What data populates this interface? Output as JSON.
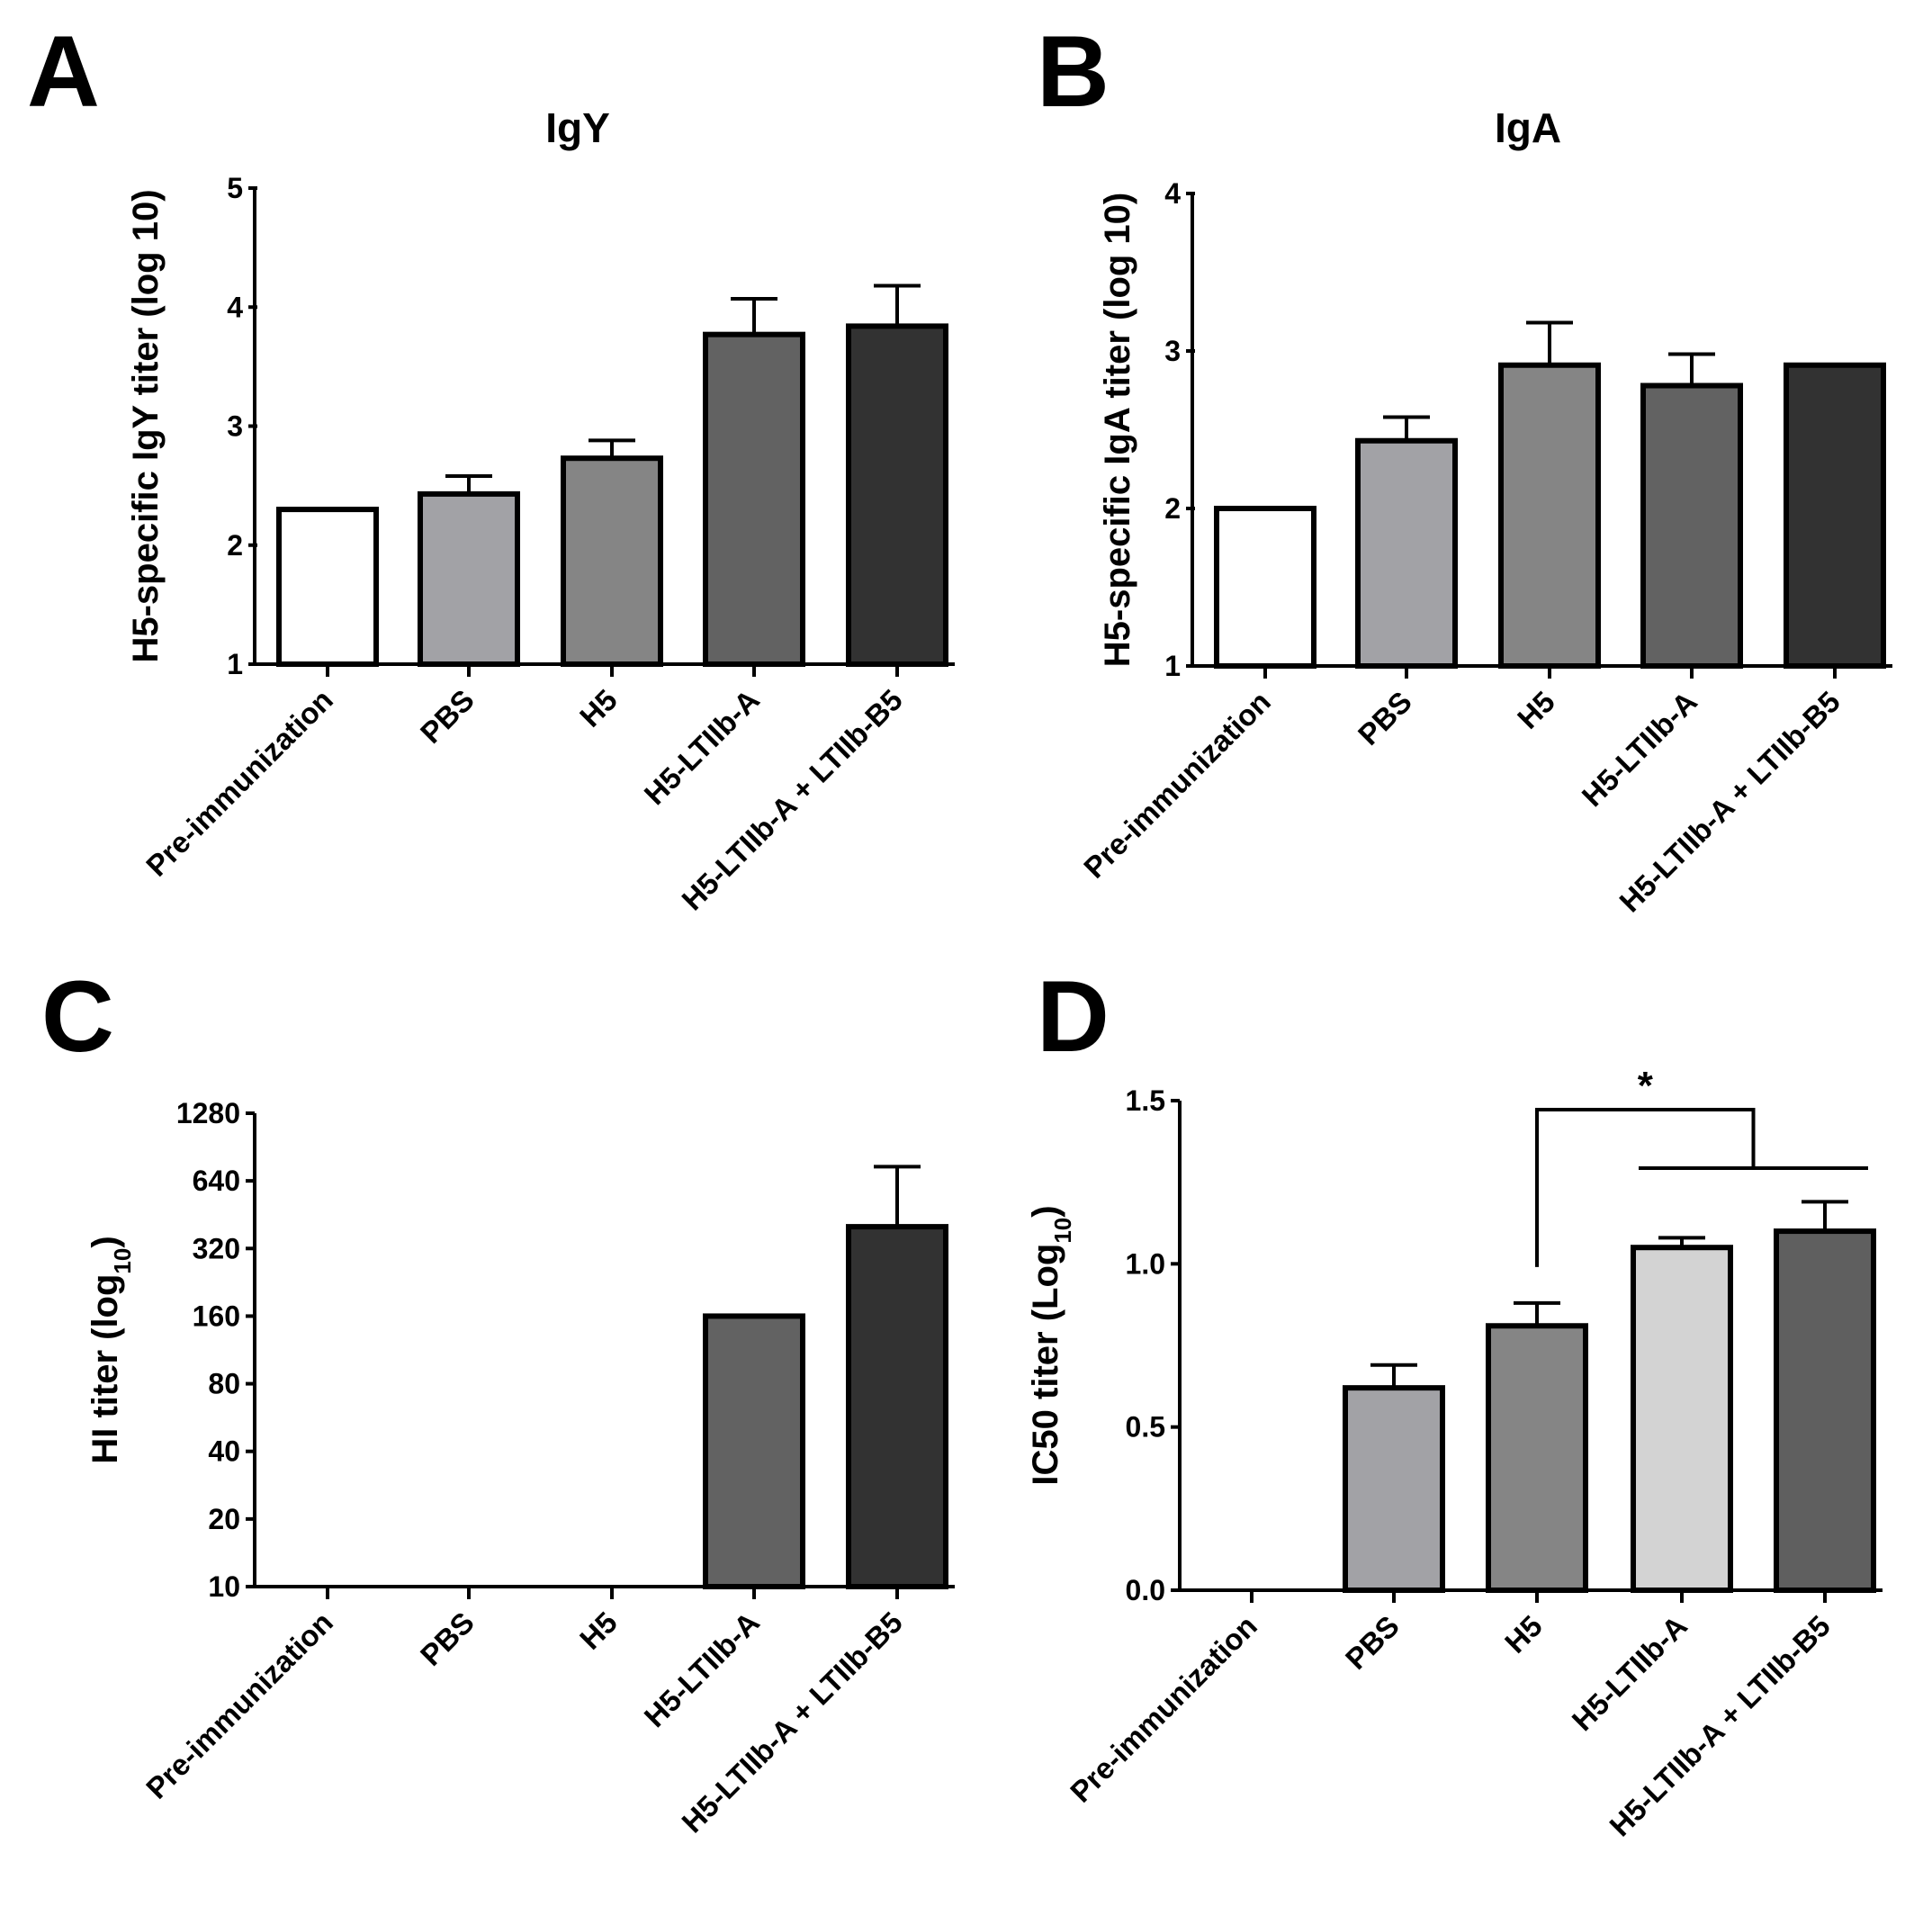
{
  "panels": [
    {
      "letter": "A",
      "chart_data": {
        "type": "bar",
        "title": "IgY",
        "xlabel": "",
        "ylabel": "H5-specific IgY titer (log 10)",
        "categories": [
          "Pre-immunization",
          "PBS",
          "H5",
          "H5-LTIIb-A",
          "H5-LTIIb-A + LTIIb-B5"
        ],
        "values": [
          2.3,
          2.43,
          2.73,
          3.77,
          3.84
        ],
        "errors": [
          0,
          0.15,
          0.15,
          0.3,
          0.34
        ],
        "ylim": [
          1,
          5
        ],
        "yticks": [
          1,
          2,
          3,
          4,
          5
        ],
        "ytick_labels": [
          "1",
          "2",
          "3",
          "4",
          "5"
        ],
        "colors": [
          "#ffffff",
          "#a2a2a6",
          "#858585",
          "#626262",
          "#323232"
        ]
      }
    },
    {
      "letter": "B",
      "chart_data": {
        "type": "bar",
        "title": "IgA",
        "xlabel": "",
        "ylabel": "H5-specific IgA titer (log 10)",
        "categories": [
          "Pre-immunization",
          "PBS",
          "H5",
          "H5-LTIIb-A",
          "H5-LTIIb-A + LTIIb-B5"
        ],
        "values": [
          2.0,
          2.43,
          2.91,
          2.78,
          2.91
        ],
        "errors": [
          0,
          0.15,
          0.27,
          0.2,
          0
        ],
        "ylim": [
          1,
          4
        ],
        "yticks": [
          1,
          2,
          3,
          4
        ],
        "ytick_labels": [
          "1",
          "2",
          "3",
          "4"
        ],
        "colors": [
          "#ffffff",
          "#a2a2a6",
          "#858585",
          "#626262",
          "#323232"
        ]
      }
    },
    {
      "letter": "C",
      "chart_data": {
        "type": "bar",
        "title": "",
        "xlabel": "",
        "ylabel": "HI titer (log",
        "ylabel_sub": "10",
        "ylabel_tail": ")",
        "categories": [
          "Pre-immunization",
          "PBS",
          "H5",
          "H5-LTIIb-A",
          "H5-LTIIb-A + LTIIb-B5"
        ],
        "values": [
          null,
          null,
          null,
          160,
          400
        ],
        "errors": [
          0,
          0,
          0,
          0,
          340
        ],
        "scale": "log2",
        "ylim": [
          10,
          1280
        ],
        "yticks": [
          10,
          20,
          40,
          80,
          160,
          320,
          640,
          1280
        ],
        "ytick_labels": [
          "10",
          "20",
          "40",
          "80",
          "160",
          "320",
          "640",
          "1280"
        ],
        "colors": [
          "#ffffff",
          "#a2a2a6",
          "#858585",
          "#626262",
          "#323232"
        ]
      }
    },
    {
      "letter": "D",
      "chart_data": {
        "type": "bar",
        "title": "",
        "xlabel": "",
        "ylabel": "IC50 titer (Log",
        "ylabel_sub": "10",
        "ylabel_tail": ")",
        "categories": [
          "Pre-immunization",
          "PBS",
          "H5",
          "H5-LTIIb-A",
          "H5-LTIIb-A + LTIIb-B5"
        ],
        "values": [
          0,
          0.62,
          0.81,
          1.05,
          1.1
        ],
        "errors": [
          0,
          0.07,
          0.07,
          0.03,
          0.09
        ],
        "ylim": [
          0,
          1.5
        ],
        "yticks": [
          0,
          0.5,
          1.0,
          1.5
        ],
        "ytick_labels": [
          "0.0",
          "0.5",
          "1.0",
          "1.5"
        ],
        "colors": [
          "#ffffff",
          "#a2a2a6",
          "#858585",
          "#d3d3d3",
          "#5f5f5f"
        ],
        "significance": {
          "label": "*",
          "from_category": "H5",
          "to_categories": [
            "H5-LTIIb-A",
            "H5-LTIIb-A + LTIIb-B5"
          ]
        }
      }
    }
  ]
}
